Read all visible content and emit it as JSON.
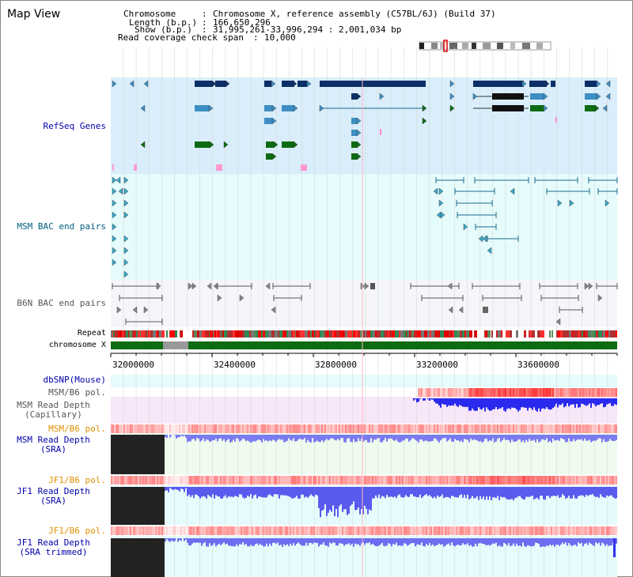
{
  "title": "Map View",
  "info": {
    "chromosome_label": "Chromosome",
    "chromosome_value": "Chromosome X, reference assembly (C57BL/6J) (Build 37)",
    "length_label": "Length (b.p.)",
    "length_value": "166,650,296",
    "show_label": "Show (b.p.)",
    "show_value": "31,995,261-33,996,294 : 2,001,034 bp",
    "coverage_label": "Read coverage check span",
    "coverage_value": "10,000"
  },
  "tracks": {
    "refseq": "RefSeq Genes",
    "msm_bac": "MSM BAC end pairs",
    "b6n_bac": "B6N BAC end pairs",
    "repeat": "Repeat",
    "chromosome": "chromosome X",
    "dbsnp": "dbSNP(Mouse)",
    "msm_b6_pol": "MSM/B6 pol.",
    "msm_depth_cap_1": "MSM Read Depth",
    "msm_depth_cap_2": "(Capillary)",
    "msm_b6_pol2": "MSM/B6 pol.",
    "msm_depth_sra_1": "MSM Read Depth",
    "msm_depth_sra_2": "(SRA)",
    "jf1_b6_pol": "JF1/B6 pol.",
    "jf1_depth_sra_1": "JF1 Read Depth",
    "jf1_depth_sra_2": "(SRA)",
    "jf1_b6_pol2": "JF1/B6 pol.",
    "jf1_depth_trim_1": "JF1 Read Depth",
    "jf1_depth_trim_2": "(SRA trimmed)"
  },
  "axis": {
    "ticks": [
      "32000000",
      "32400000",
      "32800000",
      "33200000",
      "33600000"
    ]
  },
  "colors": {
    "refseq_bg": "#d9eefa",
    "msm_bg": "#e6fbfb",
    "b6n_bg": "#f4f6f9",
    "gene_dark": "#0b2f66",
    "gene_mid": "#3e8fc4",
    "gene_green": "#0d6b12",
    "label_blue": "#0000aa",
    "label_teal": "#006080",
    "label_orange": "#e09000"
  }
}
